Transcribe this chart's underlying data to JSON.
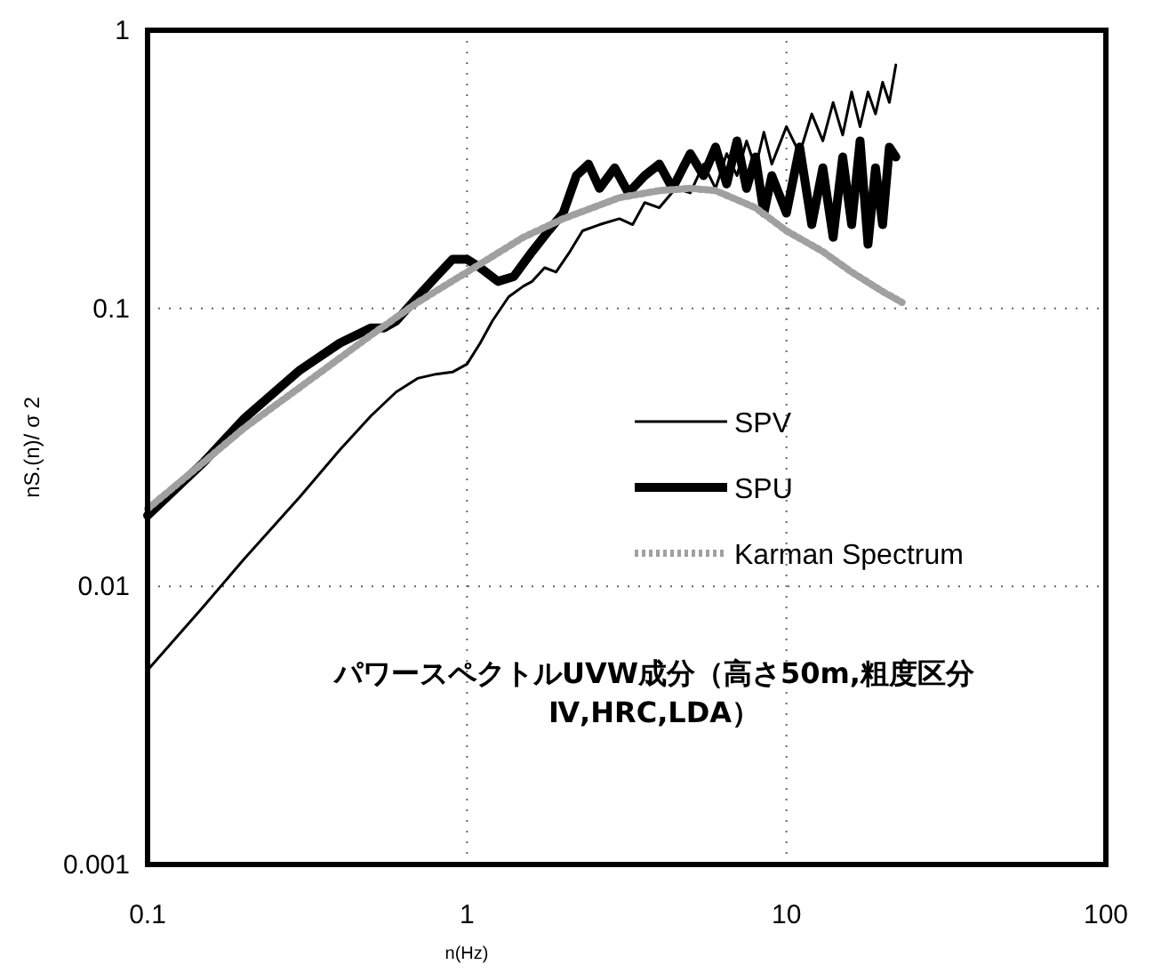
{
  "chart_data": {
    "type": "line",
    "xlabel": "n(Hz)",
    "ylabel": "nS.(n)/ σ 2",
    "log": "xy",
    "grid": true,
    "legend": "right",
    "marker": "none",
    "xlim": [
      0.1,
      100
    ],
    "xticks": [
      0.1,
      1,
      10,
      100
    ],
    "ylim": [
      0.001,
      1
    ],
    "yticks": [
      0.001,
      0.01,
      0.1,
      1
    ],
    "annotations": [
      "パワースペクトルUVW成分（高さ50m,粗度区分Ⅳ,HRC,LDA）"
    ],
    "series": [
      {
        "name": "SPV",
        "color": "#000000",
        "line_style": "solid",
        "x": [
          0.1,
          0.15,
          0.2,
          0.3,
          0.4,
          0.5,
          0.6,
          0.7,
          0.8,
          0.9,
          1.0,
          1.1,
          1.2,
          1.35,
          1.5,
          1.6,
          1.75,
          1.9,
          2.1,
          2.3,
          2.6,
          3.0,
          3.3,
          3.6,
          4.0,
          4.5,
          5.0,
          5.5,
          6,
          6.5,
          7,
          7.5,
          8,
          8.5,
          9,
          10,
          11,
          12,
          13,
          14,
          15,
          16,
          17,
          18,
          19,
          20,
          21,
          22
        ],
        "values": [
          0.005,
          0.0085,
          0.0125,
          0.021,
          0.031,
          0.041,
          0.05,
          0.056,
          0.058,
          0.059,
          0.063,
          0.075,
          0.09,
          0.11,
          0.12,
          0.125,
          0.14,
          0.135,
          0.16,
          0.19,
          0.2,
          0.21,
          0.2,
          0.24,
          0.23,
          0.27,
          0.26,
          0.33,
          0.27,
          0.36,
          0.3,
          0.4,
          0.32,
          0.43,
          0.33,
          0.45,
          0.36,
          0.5,
          0.4,
          0.55,
          0.42,
          0.6,
          0.45,
          0.6,
          0.5,
          0.65,
          0.55,
          0.75
        ]
      },
      {
        "name": "SPU",
        "color": "#000000",
        "line_style": "solid",
        "x": [
          0.1,
          0.15,
          0.2,
          0.3,
          0.4,
          0.5,
          0.55,
          0.6,
          0.7,
          0.8,
          0.9,
          1.0,
          1.1,
          1.25,
          1.4,
          1.6,
          1.8,
          2.0,
          2.2,
          2.4,
          2.6,
          2.9,
          3.2,
          3.6,
          4,
          4.4,
          5,
          5.5,
          6,
          6.5,
          7,
          7.5,
          8,
          8.5,
          9,
          10,
          11,
          12,
          13,
          14,
          15,
          16,
          17,
          18,
          19,
          20,
          21,
          22
        ],
        "values": [
          0.018,
          0.028,
          0.04,
          0.06,
          0.075,
          0.085,
          0.085,
          0.09,
          0.11,
          0.13,
          0.15,
          0.15,
          0.14,
          0.125,
          0.13,
          0.16,
          0.19,
          0.22,
          0.3,
          0.33,
          0.27,
          0.32,
          0.26,
          0.3,
          0.33,
          0.27,
          0.36,
          0.3,
          0.38,
          0.28,
          0.4,
          0.27,
          0.35,
          0.22,
          0.3,
          0.22,
          0.38,
          0.2,
          0.32,
          0.18,
          0.35,
          0.2,
          0.4,
          0.17,
          0.32,
          0.2,
          0.38,
          0.35
        ]
      },
      {
        "name": "Karman Spectrum",
        "color": "#a0a0a0",
        "line_style": "dotted",
        "x": [
          0.1,
          0.15,
          0.2,
          0.3,
          0.5,
          0.7,
          1,
          1.5,
          2,
          3,
          4,
          5,
          6,
          8,
          10,
          13,
          16,
          20,
          23
        ],
        "values": [
          0.019,
          0.028,
          0.037,
          0.052,
          0.08,
          0.105,
          0.135,
          0.18,
          0.21,
          0.25,
          0.265,
          0.27,
          0.265,
          0.23,
          0.19,
          0.16,
          0.135,
          0.115,
          0.105
        ]
      }
    ]
  }
}
